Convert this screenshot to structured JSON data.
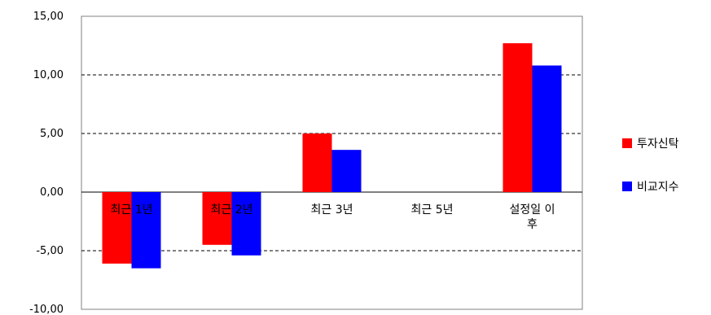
{
  "chart_data": {
    "type": "bar",
    "categories": [
      [
        "최근 1년"
      ],
      [
        "최근 2년"
      ],
      [
        "최근 3년"
      ],
      [
        "최근 5년"
      ],
      [
        "설정일 이",
        "후"
      ]
    ],
    "series": [
      {
        "name": "투자신탁",
        "values": [
          -6.1,
          -4.5,
          5.0,
          null,
          12.7
        ],
        "color": "#ff0000"
      },
      {
        "name": "비교지수",
        "values": [
          -6.5,
          -5.4,
          3.6,
          null,
          10.8
        ],
        "color": "#0000ff"
      }
    ],
    "ylim": [
      -10,
      15
    ],
    "yticks": [
      "15,00",
      "10,00",
      "5,00",
      "0,00",
      "-5,00",
      "-10,00"
    ],
    "ytick_values": [
      15,
      10,
      5,
      0,
      -5,
      -10
    ],
    "grid": "dashed horizontal",
    "legend": "right"
  }
}
